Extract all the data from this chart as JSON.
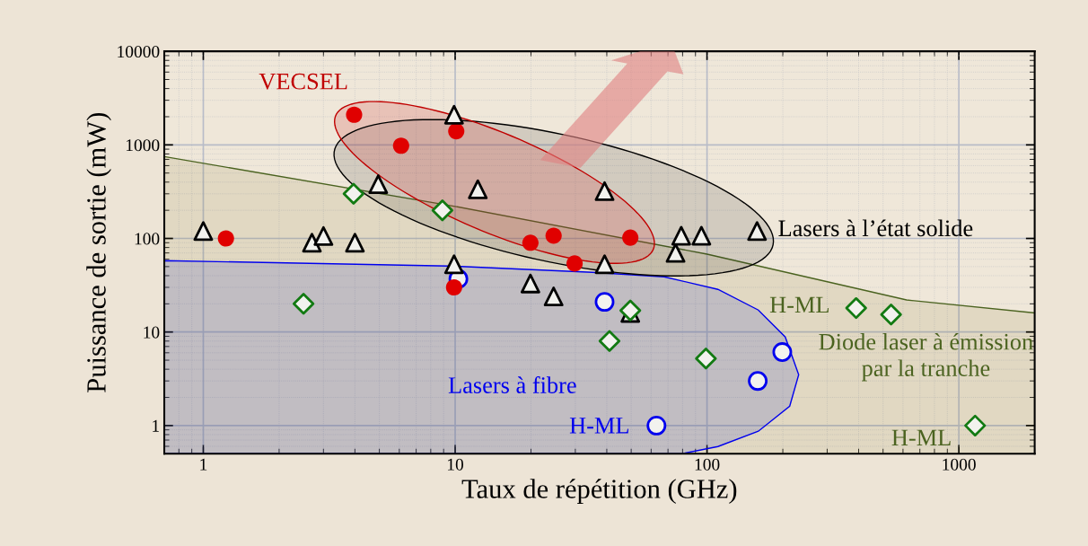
{
  "chart_data": {
    "type": "scatter",
    "xlabel": "Taux de répétition (GHz)",
    "ylabel": "Puissance de sortie (mW)",
    "log": "xy",
    "xlim": [
      0.7,
      2000
    ],
    "ylim": [
      0.5,
      10000
    ],
    "xticks": [
      1,
      10,
      100,
      1000
    ],
    "yticks": [
      1,
      10,
      100,
      1000,
      10000
    ],
    "grid": true,
    "series": [
      {
        "type": "area",
        "color": "#4b6320",
        "x": [
          0.7,
          10,
          100,
          620,
          2000
        ],
        "values": [
          750,
          220,
          68,
          22,
          16
        ]
      },
      {
        "marker": "diamond",
        "color": "#127a12",
        "x": [
          3.95,
          8.9,
          2.5,
          49.6,
          41,
          99,
          391,
          538,
          1160
        ],
        "values": [
          300,
          200,
          20,
          17,
          8,
          5.2,
          18,
          15.4,
          1.0
        ]
      },
      {
        "marker": "circle",
        "color": "#0000ee",
        "x": [
          10.3,
          39.2,
          63,
          159,
          199
        ],
        "values": [
          37,
          21,
          1.0,
          3,
          6.1
        ]
      },
      {
        "marker": "circle_filled",
        "color": "#e00000",
        "x": [
          1.23,
          3.97,
          6.1,
          10.1,
          19.9,
          24.6,
          29.8,
          49.6,
          9.9
        ],
        "values": [
          100,
          2100,
          980,
          1400,
          90,
          107,
          54,
          102,
          30
        ]
      },
      {
        "marker": "triangle",
        "color": "#000000",
        "x": [
          1,
          2.7,
          3.0,
          4.0,
          4.95,
          9.9,
          12.3,
          39.2,
          9.9,
          19.9,
          24.6,
          39.2,
          75,
          79,
          95,
          158,
          49.6
        ],
        "values": [
          120,
          90,
          106,
          90,
          380,
          2100,
          335,
          320,
          53,
          33,
          24,
          53,
          70,
          107,
          107,
          120,
          16
        ]
      }
    ],
    "annotations": [
      "VECSEL",
      "Lasers à l’état solide",
      "Lasers à fibre",
      "Diode laser à émission par la tranche",
      "H-ML",
      "H-ML",
      "H-ML"
    ]
  }
}
